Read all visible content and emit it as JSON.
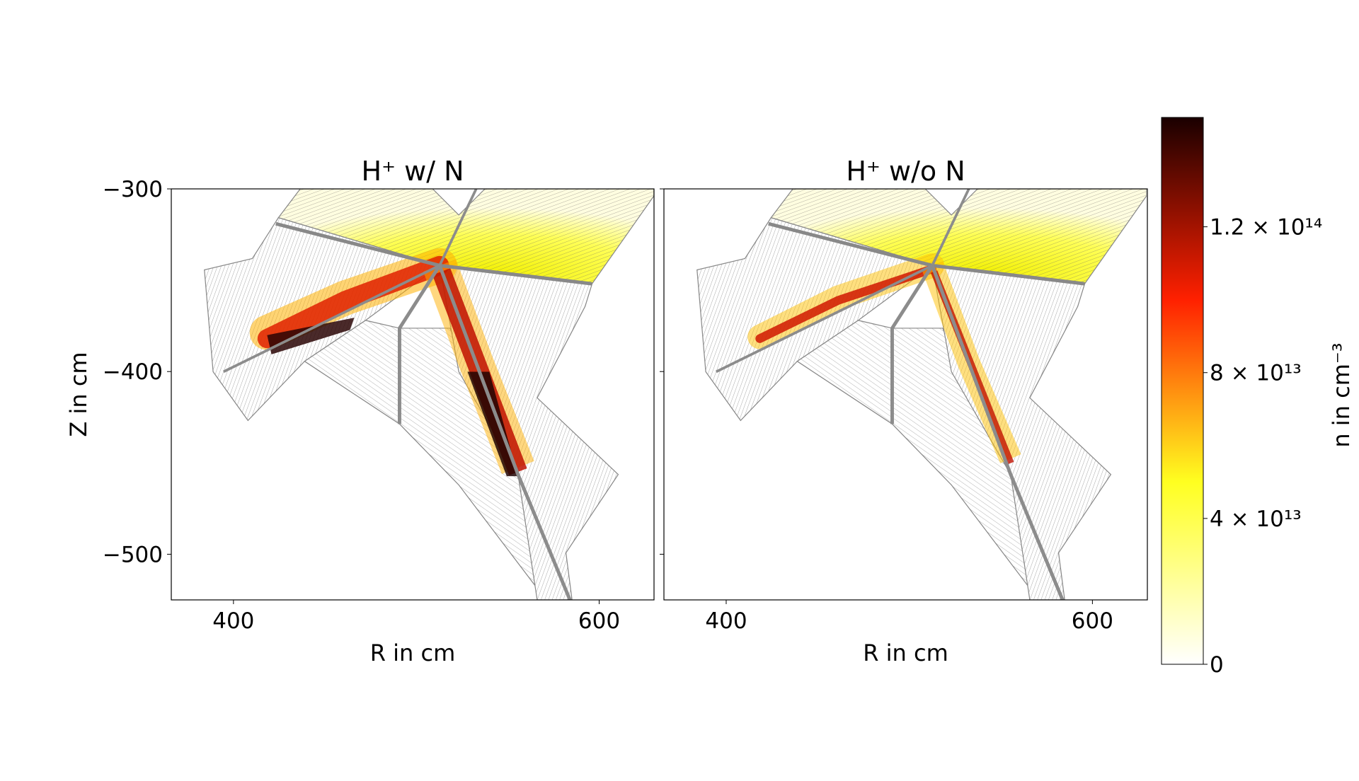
{
  "chart_data": [
    {
      "type": "mesh",
      "title": "H⁺ w/ N",
      "x_label": "R in cm",
      "y_label": "Z in cm",
      "xlim": [
        366,
        630
      ],
      "ylim": [
        -525,
        -300
      ],
      "xticks": [
        400,
        600
      ],
      "yticks": [
        {
          "value": -300,
          "label": "−300"
        },
        {
          "value": -400,
          "label": "−400"
        },
        {
          "value": -500,
          "label": "−500"
        }
      ]
    },
    {
      "type": "mesh",
      "title": "H⁺ w/o N",
      "x_label": "R in cm",
      "xlim": [
        366,
        630
      ],
      "ylim": [
        -525,
        -300
      ],
      "xticks": [
        400,
        600
      ],
      "yticks": [
        -300,
        -400,
        -500
      ]
    },
    {
      "type": "colorbar",
      "label": "n in cm⁻³",
      "lim": [
        0,
        150000000000000
      ],
      "colormap": [
        "#ffffff",
        "#ffff20",
        "#ff2000",
        "#1a0000"
      ],
      "ticks": [
        0,
        {
          "value": 40000000000000,
          "label": "4 × 10¹³"
        },
        {
          "value": 80000000000000,
          "label": "8 × 10¹³"
        },
        {
          "value": 120000000000000,
          "label": "1.2 × 10¹⁴"
        }
      ]
    }
  ]
}
